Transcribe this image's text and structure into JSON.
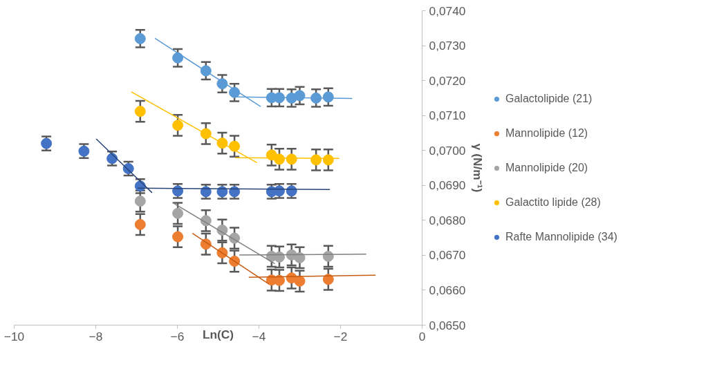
{
  "chart_data": {
    "type": "scatter",
    "xlabel": "Ln(C)",
    "ylabel": "γ (N/m⁻¹)",
    "marker": "circle",
    "legend": "right",
    "grid": false,
    "xlim": [
      -10,
      0
    ],
    "xticks": [
      -10,
      -8,
      -6,
      -4,
      -2,
      0
    ],
    "ylim": [
      0.065,
      0.074
    ],
    "yticks": [
      {
        "value": 0.065,
        "label": "0,0650"
      },
      {
        "value": 0.066,
        "label": "0,0660"
      },
      {
        "value": 0.067,
        "label": "0,0670"
      },
      {
        "value": 0.068,
        "label": "0,0680"
      },
      {
        "value": 0.069,
        "label": "0,0690"
      },
      {
        "value": 0.07,
        "label": "0,0700"
      },
      {
        "value": 0.071,
        "label": "0,0710"
      },
      {
        "value": 0.072,
        "label": "0,0720"
      },
      {
        "value": 0.073,
        "label": "0,0730"
      },
      {
        "value": 0.074,
        "label": "0,0740"
      }
    ],
    "series": [
      {
        "name": "Galactolipide (21)",
        "color": "#5b9bd5",
        "x": [
          -6.91,
          -5.99,
          -5.3,
          -4.9,
          -4.6,
          -3.69,
          -3.5,
          -3.2,
          -3.0,
          -2.6,
          -2.3
        ],
        "values": [
          0.0732,
          0.07265,
          0.07228,
          0.07191,
          0.07166,
          0.07151,
          0.07151,
          0.0715,
          0.07157,
          0.0715,
          0.07153
        ],
        "errors": [
          0.00025,
          0.00025,
          0.00025,
          0.00025,
          0.00025,
          0.00025,
          0.00025,
          0.00025,
          0.00025,
          0.00025,
          0.00025
        ]
      },
      {
        "name": "Mannolipide (12)",
        "color": "#ed7d31",
        "x": [
          -6.91,
          -5.99,
          -5.3,
          -4.9,
          -4.6,
          -3.69,
          -3.5,
          -3.2,
          -3.0,
          -2.3
        ],
        "values": [
          0.06788,
          0.06753,
          0.06732,
          0.06707,
          0.06683,
          0.06629,
          0.06628,
          0.06635,
          0.06626,
          0.06631
        ],
        "errors": [
          0.0003,
          0.0003,
          0.0003,
          0.0003,
          0.0003,
          0.0003,
          0.0003,
          0.0003,
          0.0003,
          0.0003
        ]
      },
      {
        "name": "Mannolipide (20)",
        "color": "#a5a5a5",
        "x": [
          -6.91,
          -5.99,
          -5.3,
          -4.9,
          -4.6,
          -3.69,
          -3.5,
          -3.2,
          -3.0,
          -2.3
        ],
        "values": [
          0.06855,
          0.0682,
          0.06799,
          0.06772,
          0.06749,
          0.06697,
          0.06695,
          0.06701,
          0.06693,
          0.06697
        ],
        "errors": [
          0.0003,
          0.0003,
          0.0003,
          0.0003,
          0.0003,
          0.0003,
          0.0003,
          0.0003,
          0.0003,
          0.0003
        ]
      },
      {
        "name": "Galactito lipide (28)",
        "color": "#ffc000",
        "x": [
          -6.91,
          -5.99,
          -5.3,
          -4.9,
          -4.6,
          -3.69,
          -3.5,
          -3.2,
          -2.6,
          -2.3
        ],
        "values": [
          0.07112,
          0.07072,
          0.07048,
          0.07021,
          0.07012,
          0.06987,
          0.06975,
          0.06975,
          0.06973,
          0.06973
        ],
        "errors": [
          0.0003,
          0.0003,
          0.0003,
          0.0003,
          0.0003,
          0.0003,
          0.0003,
          0.0003,
          0.0003,
          0.0003
        ]
      },
      {
        "name": "Rafte Mannolipide (34)",
        "color": "#4472c4",
        "x": [
          -9.21,
          -8.29,
          -7.6,
          -7.2,
          -6.91,
          -5.99,
          -5.3,
          -4.9,
          -4.6,
          -3.69,
          -3.5,
          -3.2
        ],
        "values": [
          0.0702,
          0.06998,
          0.06977,
          0.06948,
          0.06898,
          0.06884,
          0.06882,
          0.06882,
          0.06882,
          0.06882,
          0.06884,
          0.06884
        ],
        "errors": [
          0.0002,
          0.0002,
          0.0002,
          0.0002,
          0.0002,
          0.0002,
          0.0002,
          0.0002,
          0.0002,
          0.0002,
          0.0002,
          0.0002
        ]
      },
      {
        "type": "line",
        "marker": "none",
        "color": "#5b9bd5",
        "x": [
          -6.55,
          -3.96
        ],
        "values": [
          0.07321,
          0.07126
        ]
      },
      {
        "type": "line",
        "marker": "none",
        "color": "#5b9bd5",
        "x": [
          -4.58,
          -1.71
        ],
        "values": [
          0.07153,
          0.07149
        ]
      },
      {
        "type": "line",
        "marker": "none",
        "color": "#ffc000",
        "x": [
          -7.13,
          -4.05
        ],
        "values": [
          0.07168,
          0.06965
        ]
      },
      {
        "type": "line",
        "marker": "none",
        "color": "#ffc000",
        "x": [
          -4.58,
          -2.03
        ],
        "values": [
          0.06979,
          0.06977
        ]
      },
      {
        "type": "line",
        "marker": "none",
        "color": "#264478",
        "x": [
          -7.99,
          -6.62
        ],
        "values": [
          0.07033,
          0.06879
        ]
      },
      {
        "type": "line",
        "marker": "none",
        "color": "#264478",
        "x": [
          -6.97,
          -2.26
        ],
        "values": [
          0.06892,
          0.06888
        ]
      },
      {
        "type": "line",
        "marker": "none",
        "color": "#7f7f7f",
        "x": [
          -6.12,
          -3.61
        ],
        "values": [
          0.06851,
          0.06676
        ]
      },
      {
        "type": "line",
        "marker": "none",
        "color": "#7f7f7f",
        "x": [
          -4.48,
          -1.37
        ],
        "values": [
          0.06701,
          0.06703
        ]
      },
      {
        "type": "line",
        "marker": "none",
        "color": "#c55a11",
        "x": [
          -5.63,
          -3.76
        ],
        "values": [
          0.06763,
          0.06618
        ]
      },
      {
        "type": "line",
        "marker": "none",
        "color": "#c55a11",
        "x": [
          -4.25,
          -1.14
        ],
        "values": [
          0.06637,
          0.06643
        ]
      }
    ]
  }
}
